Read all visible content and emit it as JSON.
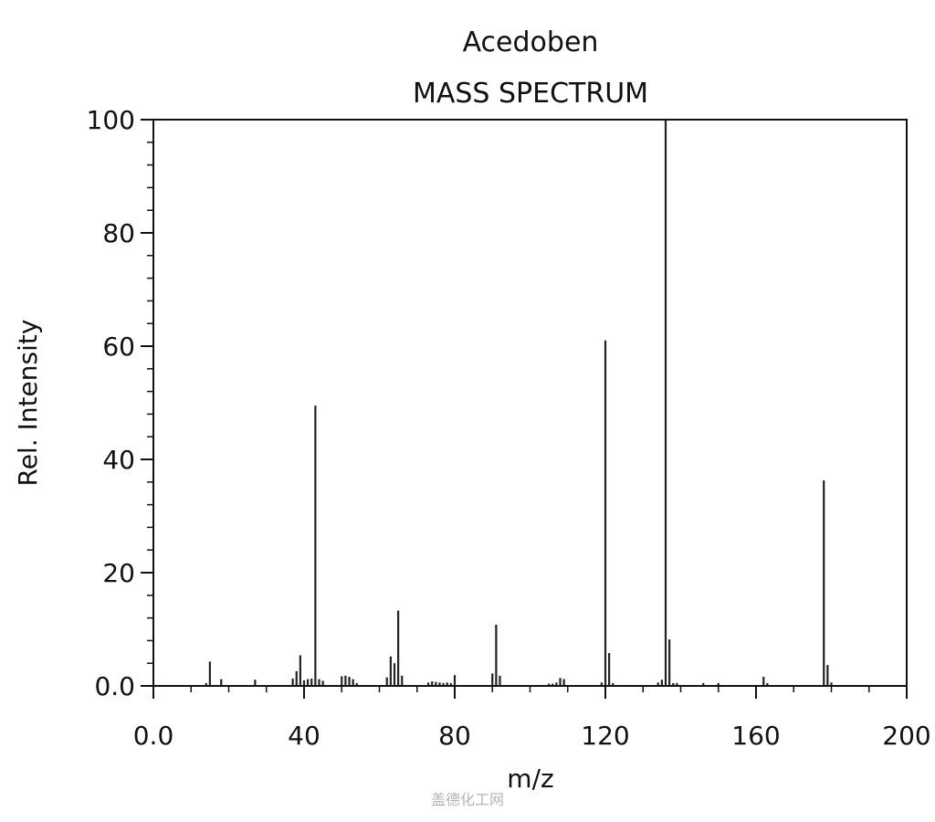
{
  "chart_data": {
    "type": "bar",
    "title": "Acedoben",
    "subtitle": "MASS SPECTRUM",
    "xlabel": "m/z",
    "ylabel": "Rel. Intensity",
    "xlim": [
      0,
      200
    ],
    "ylim": [
      0,
      100
    ],
    "x_ticks": [
      0,
      40,
      80,
      120,
      160,
      200
    ],
    "x_tick_labels": [
      "0.0",
      "40",
      "80",
      "120",
      "160",
      "200"
    ],
    "y_ticks": [
      0,
      20,
      40,
      60,
      80,
      100
    ],
    "y_tick_labels": [
      "0.0",
      "20",
      "40",
      "60",
      "80",
      "100"
    ],
    "grid": false,
    "series": [
      {
        "x": [
          14,
          15,
          18,
          27,
          37,
          38,
          39,
          40,
          41,
          42,
          43,
          44,
          45,
          50,
          51,
          52,
          53,
          54,
          62,
          63,
          64,
          65,
          66,
          73,
          74,
          75,
          76,
          77,
          78,
          79,
          80,
          90,
          91,
          92,
          105,
          106,
          107,
          108,
          109,
          119,
          120,
          121,
          122,
          134,
          135,
          136,
          137,
          138,
          139,
          146,
          150,
          162,
          163,
          178,
          179,
          180
        ],
        "values": [
          0.5,
          4.3,
          1.2,
          1.1,
          1.3,
          2.6,
          5.4,
          1.0,
          1.2,
          1.3,
          49.5,
          1.2,
          0.9,
          1.7,
          1.8,
          1.6,
          1.2,
          0.5,
          1.5,
          5.2,
          4.0,
          13.3,
          1.8,
          0.6,
          0.8,
          0.7,
          0.6,
          0.5,
          0.6,
          0.5,
          1.9,
          2.2,
          10.8,
          1.8,
          0.4,
          0.4,
          0.6,
          1.4,
          1.2,
          0.6,
          61.0,
          5.8,
          0.5,
          0.6,
          1.1,
          100,
          8.2,
          0.5,
          0.5,
          0.5,
          0.5,
          1.6,
          0.5,
          36.3,
          3.7,
          0.6
        ]
      }
    ]
  },
  "watermark": "盖德化工网"
}
